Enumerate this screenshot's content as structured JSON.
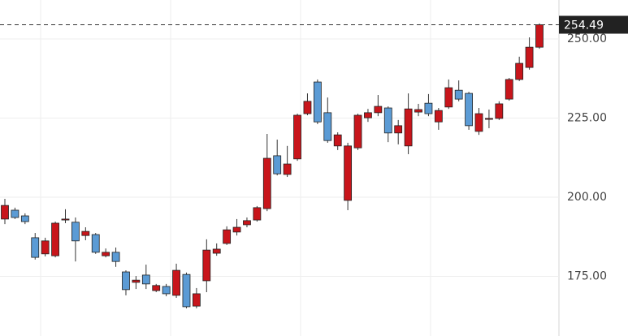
{
  "chart_data": {
    "type": "candlestick",
    "open": [
      193.1,
      195.9,
      194.1,
      187.2,
      182.1,
      181.5,
      192.8,
      192.1,
      187.9,
      188.2,
      181.5,
      182.6,
      176.4,
      173.1,
      175.4,
      170.5,
      171.8,
      169.0,
      175.6,
      165.6,
      173.6,
      182.3,
      185.4,
      189.0,
      191.3,
      192.8,
      196.4,
      213.1,
      207.2,
      212.1,
      226.4,
      236.4,
      226.7,
      216.2,
      199.0,
      215.6,
      225.1,
      226.7,
      228.2,
      220.3,
      216.2,
      226.9,
      229.7,
      223.8,
      228.5,
      233.8,
      232.8,
      220.8,
      224.6,
      224.9,
      231.0,
      237.2,
      241.0,
      247.4
    ],
    "high": [
      199.5,
      196.7,
      194.9,
      188.7,
      187.2,
      192.3,
      196.2,
      193.6,
      190.5,
      188.7,
      183.8,
      184.1,
      176.9,
      175.1,
      178.7,
      172.6,
      172.6,
      179.0,
      176.2,
      171.3,
      186.7,
      185.4,
      190.8,
      193.1,
      193.6,
      197.2,
      220.0,
      218.2,
      216.2,
      226.4,
      232.8,
      237.2,
      231.5,
      220.5,
      217.2,
      226.4,
      227.9,
      232.3,
      228.7,
      224.4,
      232.8,
      229.5,
      232.6,
      228.2,
      237.2,
      236.9,
      233.3,
      228.2,
      227.7,
      230.3,
      237.7,
      244.4,
      250.5,
      254.9
    ],
    "low": [
      191.5,
      193.1,
      191.5,
      180.3,
      181.3,
      181.0,
      191.8,
      179.7,
      186.4,
      182.1,
      181.0,
      178.0,
      169.0,
      171.0,
      171.0,
      170.0,
      168.7,
      168.2,
      164.9,
      164.9,
      170.0,
      181.5,
      184.9,
      187.9,
      190.5,
      192.3,
      195.6,
      206.9,
      206.4,
      211.5,
      225.9,
      223.1,
      217.2,
      214.9,
      195.9,
      214.9,
      223.8,
      225.6,
      217.4,
      216.7,
      213.6,
      225.6,
      225.6,
      221.3,
      227.9,
      230.3,
      221.3,
      219.7,
      221.8,
      224.4,
      230.5,
      236.7,
      240.3,
      246.9
    ],
    "close": [
      197.4,
      193.6,
      192.3,
      181.0,
      186.2,
      191.8,
      193.1,
      186.2,
      189.2,
      182.6,
      182.6,
      179.7,
      170.8,
      173.8,
      172.6,
      172.1,
      169.5,
      176.9,
      165.4,
      169.5,
      183.3,
      183.6,
      189.7,
      190.5,
      192.6,
      196.7,
      212.3,
      207.4,
      210.5,
      225.9,
      230.3,
      223.8,
      217.9,
      219.7,
      216.2,
      225.9,
      226.7,
      228.7,
      220.3,
      222.6,
      227.9,
      227.7,
      226.4,
      227.4,
      234.6,
      231.0,
      222.6,
      226.4,
      224.9,
      229.5,
      237.2,
      242.3,
      247.4,
      254.49
    ],
    "up_color": "#c8151b",
    "down_color": "#5b9bd5",
    "ylim": [
      156.15,
      262.31
    ],
    "yticks": [
      {
        "value": 175,
        "label": "175.00"
      },
      {
        "value": 200,
        "label": "200.00"
      },
      {
        "value": 225,
        "label": "225.00"
      },
      {
        "value": 250,
        "label": "250.00"
      }
    ],
    "grid": true
  }
}
